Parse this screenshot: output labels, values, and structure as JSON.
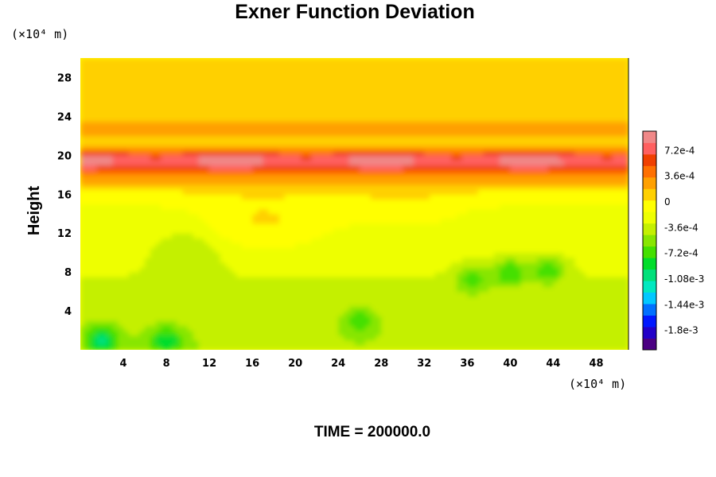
{
  "chart_data": {
    "type": "heatmap",
    "title": "Exner Function Deviation",
    "ylabel": "Height",
    "xlabel": "",
    "x_unit_label": "(×10⁴ m)",
    "y_unit_label": "(×10⁴ m)",
    "x_ticks": [
      4,
      8,
      12,
      16,
      20,
      24,
      28,
      32,
      36,
      40,
      44,
      48
    ],
    "y_ticks": [
      4,
      8,
      12,
      16,
      20,
      24,
      28
    ],
    "xlim": [
      0,
      51
    ],
    "ylim": [
      0,
      30
    ],
    "grid": false,
    "colorbar": {
      "tick_labels": [
        "7.2e-4",
        "3.6e-4",
        "0",
        "-3.6e-4",
        "-7.2e-4",
        "-1.08e-3",
        "-1.44e-3",
        "-1.8e-3"
      ],
      "tick_values": [
        0.00072,
        0.00036,
        0,
        -0.00036,
        -0.00072,
        -0.00108,
        -0.00144,
        -0.0018
      ],
      "range": [
        -0.00207,
        0.00099
      ],
      "colors": [
        "#4b0082",
        "#2200c8",
        "#0018ff",
        "#0070ff",
        "#00c8ff",
        "#00e8c0",
        "#00e07a",
        "#00dd2a",
        "#44e000",
        "#88e600",
        "#c4f000",
        "#eeff00",
        "#ffff00",
        "#ffd000",
        "#ffa000",
        "#ff7000",
        "#f04000",
        "#ff6060",
        "#f08888"
      ]
    },
    "field_summary": {
      "band_20_peak": 0.00085,
      "above_band_near_zero": 5e-05,
      "lower_field_typical": -0.00045,
      "minima_near": [
        {
          "x": 2,
          "y": 1,
          "value": -0.00105
        },
        {
          "x": 8,
          "y": 1,
          "value": -0.00095
        },
        {
          "x": 26,
          "y": 3,
          "value": -0.0008
        },
        {
          "x": 40,
          "y": 8,
          "value": -0.00095
        },
        {
          "x": 43.5,
          "y": 8.2,
          "value": -0.0009
        },
        {
          "x": 36.5,
          "y": 7.2,
          "value": -0.00085
        }
      ]
    }
  },
  "footer": {
    "time_label": "TIME = 200000.0"
  }
}
